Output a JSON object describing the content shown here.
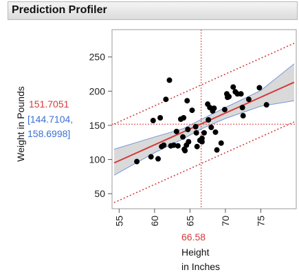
{
  "header": {
    "title": "Prediction Profiler"
  },
  "profiler": {
    "y_label": "Weight in Pounds",
    "predicted": "151.7051",
    "ci_line1": "[144.7104,",
    "ci_line2": "158.6998]",
    "x_value": "66.58",
    "x_label_line1": "Height",
    "x_label_line2": "in Inches"
  },
  "colors": {
    "fit": "#d43a3a",
    "band_fill": "#d9d9d9",
    "band_edge": "#7896d8",
    "points": "#000000"
  },
  "chart_data": {
    "type": "scatter",
    "xlabel": "Height in Inches",
    "ylabel": "Weight in Pounds",
    "xlim": [
      54,
      80
    ],
    "ylim": [
      28,
      290
    ],
    "x_ticks": [
      55,
      60,
      65,
      70,
      75
    ],
    "y_ticks": [
      50,
      100,
      150,
      200,
      250
    ],
    "grid": false,
    "crosshair": {
      "x": 66.58,
      "y": 151.7051
    },
    "fit_line": {
      "x0": 54.3,
      "y0": 95,
      "x1": 79.7,
      "y1": 213
    },
    "confidence_band": {
      "x": [
        54.3,
        60,
        64,
        66.58,
        70,
        75,
        79.7
      ],
      "upper": [
        115,
        133,
        145,
        158.7,
        176,
        201,
        240
      ],
      "lower": [
        77,
        110,
        130,
        144.7,
        160,
        178,
        186
      ]
    },
    "prediction_lower": {
      "x0": 54.3,
      "y0": 37,
      "x1": 79.7,
      "y1": 155
    },
    "prediction_upper": {
      "x0": 54.3,
      "y0": 152,
      "x1": 79.7,
      "y1": 270
    },
    "points": [
      [
        57.5,
        97
      ],
      [
        59.5,
        104
      ],
      [
        59.8,
        157
      ],
      [
        60.5,
        101
      ],
      [
        60.8,
        161
      ],
      [
        61.0,
        119
      ],
      [
        61.3,
        121
      ],
      [
        61.6,
        188
      ],
      [
        62.1,
        216
      ],
      [
        62.3,
        120
      ],
      [
        62.7,
        121
      ],
      [
        63.1,
        141
      ],
      [
        63.3,
        120
      ],
      [
        63.7,
        159
      ],
      [
        64.1,
        161
      ],
      [
        64.0,
        133
      ],
      [
        64.2,
        115
      ],
      [
        64.3,
        113
      ],
      [
        64.5,
        121
      ],
      [
        64.6,
        186
      ],
      [
        64.7,
        144
      ],
      [
        64.8,
        126
      ],
      [
        65.3,
        172
      ],
      [
        65.8,
        148
      ],
      [
        65.9,
        139
      ],
      [
        66.0,
        119
      ],
      [
        66.4,
        128
      ],
      [
        66.7,
        131
      ],
      [
        66.7,
        126
      ],
      [
        67.0,
        139
      ],
      [
        67.5,
        181
      ],
      [
        67.6,
        158
      ],
      [
        67.8,
        176
      ],
      [
        68.0,
        147
      ],
      [
        68.2,
        171
      ],
      [
        68.4,
        175
      ],
      [
        68.6,
        140
      ],
      [
        68.8,
        114
      ],
      [
        69.4,
        124
      ],
      [
        69.9,
        173
      ],
      [
        70.2,
        196
      ],
      [
        70.3,
        191
      ],
      [
        70.5,
        192
      ],
      [
        71.1,
        206
      ],
      [
        71.4,
        199
      ],
      [
        71.7,
        196
      ],
      [
        72.2,
        196
      ],
      [
        72.4,
        176
      ],
      [
        72.5,
        164
      ],
      [
        73.3,
        188
      ],
      [
        74.8,
        205
      ],
      [
        75.8,
        180
      ]
    ]
  }
}
